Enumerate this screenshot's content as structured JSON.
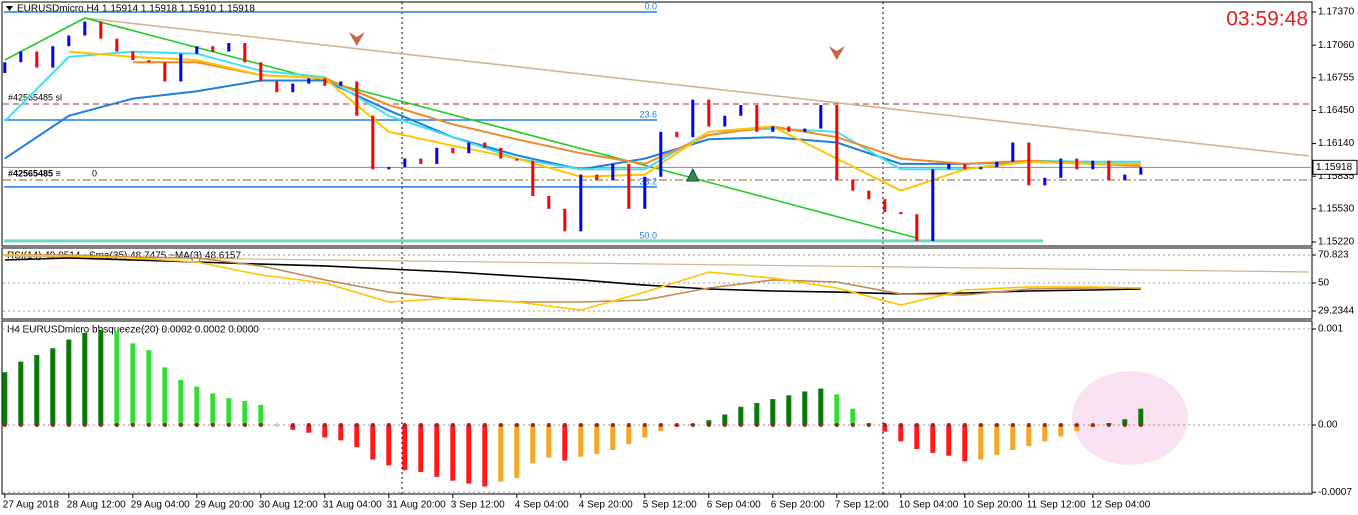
{
  "chart_data": [
    {
      "type": "ohlc",
      "title": "EURUSDmicro,H4  1.15914 1.15918 1.15910 1.15918",
      "clock": "03:59:48",
      "x": [
        0,
        1,
        2,
        3,
        4,
        5,
        6,
        7,
        8,
        9,
        10,
        11,
        12,
        13,
        14,
        15,
        16,
        17,
        18,
        19,
        20,
        21,
        22,
        23,
        24,
        25,
        26,
        27,
        28,
        29,
        30,
        31,
        32,
        33,
        34,
        35,
        36,
        37,
        38,
        39,
        40,
        41,
        42,
        43,
        44,
        45,
        46,
        47,
        48,
        49,
        50,
        51,
        52,
        53,
        54,
        55,
        56,
        57,
        58,
        59,
        60,
        61,
        62,
        63,
        64,
        65,
        66,
        67,
        68,
        69,
        70,
        71
      ],
      "open": [
        1.168,
        1.169,
        1.17,
        1.1685,
        1.1705,
        1.1715,
        1.1728,
        1.1712,
        1.17,
        1.1692,
        1.169,
        1.1672,
        1.1698,
        1.1705,
        1.17,
        1.1708,
        1.169,
        1.1672,
        1.1662,
        1.167,
        1.1675,
        1.1668,
        1.1672,
        1.164,
        1.159,
        1.1592,
        1.16,
        1.1595,
        1.161,
        1.1605,
        1.1615,
        1.161,
        1.16,
        1.1598,
        1.1565,
        1.1553,
        1.1532,
        1.1585,
        1.158,
        1.1595,
        1.1553,
        1.1583,
        1.1625,
        1.162,
        1.1655,
        1.163,
        1.164,
        1.165,
        1.1625,
        1.163,
        1.1625,
        1.1628,
        1.165,
        1.158,
        1.157,
        1.1562,
        1.155,
        1.1548,
        1.1523,
        1.159,
        1.1595,
        1.159,
        1.1592,
        1.1597,
        1.1615,
        1.1575,
        1.1582,
        1.16,
        1.159,
        1.1598,
        1.158,
        1.1585
      ],
      "close": [
        1.169,
        1.17,
        1.1685,
        1.1705,
        1.1715,
        1.1728,
        1.1712,
        1.17,
        1.1692,
        1.169,
        1.1672,
        1.1698,
        1.1705,
        1.17,
        1.1708,
        1.169,
        1.1672,
        1.1662,
        1.167,
        1.1675,
        1.1668,
        1.1672,
        1.164,
        1.159,
        1.1592,
        1.16,
        1.1595,
        1.161,
        1.1605,
        1.1615,
        1.161,
        1.16,
        1.1598,
        1.1565,
        1.1553,
        1.1532,
        1.1585,
        1.158,
        1.1595,
        1.1553,
        1.1583,
        1.1625,
        1.162,
        1.1655,
        1.163,
        1.164,
        1.165,
        1.1625,
        1.163,
        1.1625,
        1.1628,
        1.165,
        1.158,
        1.157,
        1.1562,
        1.155,
        1.1548,
        1.1523,
        1.159,
        1.1595,
        1.159,
        1.1592,
        1.1597,
        1.1615,
        1.1575,
        1.1582,
        1.16,
        1.159,
        1.1598,
        1.158,
        1.1585,
        1.15918
      ],
      "up_color": "#0000ff",
      "down_color": "#ff0000",
      "series": [
        {
          "color": "#1e7fe0",
          "x": [
            0,
            4,
            8,
            12,
            16,
            20,
            24,
            28,
            32,
            36,
            40,
            44,
            48,
            52,
            56,
            60,
            64,
            68,
            71
          ],
          "values": [
            1.16,
            1.164,
            1.1656,
            1.1663,
            1.1673,
            1.1673,
            1.1645,
            1.162,
            1.1603,
            1.159,
            1.16,
            1.1618,
            1.162,
            1.1615,
            1.1595,
            1.1595,
            1.1597,
            1.1595,
            1.1595
          ]
        },
        {
          "color": "#40e0f0",
          "x": [
            0,
            4,
            8,
            12,
            16,
            20,
            24,
            28,
            32,
            36,
            40,
            44,
            48,
            52,
            56,
            60,
            64,
            68,
            71
          ],
          "values": [
            1.1635,
            1.1695,
            1.17,
            1.1698,
            1.1682,
            1.1676,
            1.164,
            1.162,
            1.16,
            1.159,
            1.159,
            1.1625,
            1.1628,
            1.1625,
            1.159,
            1.159,
            1.1598,
            1.1597,
            1.1597
          ]
        },
        {
          "color": "#f08a24",
          "x": [
            0,
            4,
            8,
            12,
            16,
            20,
            24,
            28,
            32,
            36,
            40,
            44,
            48,
            52,
            56,
            60,
            64,
            68,
            71
          ],
          "values": [
            null,
            null,
            1.169,
            1.169,
            1.1678,
            1.1675,
            1.165,
            1.1632,
            1.1618,
            1.1605,
            1.1595,
            1.1622,
            1.163,
            1.162,
            1.16,
            1.1595,
            1.1598,
            1.1595,
            1.1593
          ]
        },
        {
          "color": "#ffc400",
          "x": [
            0,
            4,
            8,
            12,
            16,
            20,
            24,
            28,
            32,
            36,
            40,
            44,
            48,
            52,
            56,
            60,
            64,
            68,
            71
          ],
          "values": [
            null,
            1.17,
            1.1695,
            1.1692,
            1.1678,
            1.1675,
            1.1625,
            1.1612,
            1.16,
            1.1583,
            1.1585,
            1.1625,
            1.163,
            1.16,
            1.157,
            1.159,
            1.1597,
            1.1595,
            1.1595
          ]
        }
      ],
      "trendlines": [
        {
          "color": "#d2b48c",
          "x": [
            5,
            81.5
          ],
          "values": [
            1.17314,
            1.16024
          ]
        },
        {
          "color": "#22cc22",
          "x": [
            0,
            5,
            43,
            57
          ],
          "values": [
            1.16921,
            1.17314,
            1.15818,
            1.15257
          ]
        }
      ],
      "fib_levels": [
        {
          "label": "0.0",
          "value": 1.1737
        },
        {
          "label": "23.6",
          "value": 1.1636
        },
        {
          "label": "38.2",
          "value": 1.15735
        },
        {
          "label": "50.0",
          "value": 1.1523
        }
      ],
      "fib_color": "#1e7fe0",
      "fib_last_color": "#70d8c0",
      "order_lines": [
        {
          "label": "#42565485 sl",
          "value": 1.1651,
          "color": "#b03030"
        },
        {
          "label": "#42565485 ≡",
          "value": 1.158,
          "tag": "0",
          "color": "#8b5a2b"
        }
      ],
      "arrows_down": [
        {
          "x": 22,
          "value": 1.17127
        },
        {
          "x": 52,
          "value": 1.16996
        }
      ],
      "arrows_up": [
        {
          "x": 43,
          "value": 1.15837
        }
      ],
      "last_price": 1.15918,
      "xlim": [
        -0.3,
        81.7
      ],
      "ylim": [
        1.15192,
        1.17454
      ],
      "yticks": [
        {
          "value": 1.1737,
          "label": "1.17370"
        },
        {
          "value": 1.1706,
          "label": "1.17060"
        },
        1.16755,
        {
          "value": 1.1645,
          "label": "1.16450"
        },
        {
          "value": 1.1614,
          "label": "1.16140"
        },
        1.15835,
        {
          "value": 1.1553,
          "label": "1.15530"
        },
        {
          "value": 1.1522,
          "label": "1.15220"
        }
      ]
    },
    {
      "type": "line",
      "title": "RSI(14) 49.0514  ~Sma(35) 48.7475  ~MA(3) 48.6157",
      "series": [
        {
          "color": "#d2b48c",
          "x": [
            0,
            81.5
          ],
          "values": [
            70.1,
            58.2
          ]
        },
        {
          "color": "#000000",
          "x": [
            0,
            4,
            8,
            12,
            16,
            20,
            24,
            28,
            32,
            36,
            40,
            44,
            48,
            52,
            56,
            60,
            64,
            68,
            71
          ],
          "values": [
            67.1,
            68.6,
            67.1,
            65.6,
            64.1,
            62.7,
            60.4,
            58.2,
            55.2,
            52.3,
            48.5,
            45.6,
            44.1,
            43.3,
            41.9,
            42.6,
            44.1,
            44.8,
            45.6
          ]
        },
        {
          "color": "#c08a50",
          "x": [
            0,
            4,
            8,
            12,
            16,
            20,
            24,
            28,
            32,
            36,
            40,
            44,
            48,
            52,
            56,
            60,
            64,
            68,
            71
          ],
          "values": [
            70.8,
            70.8,
            69.3,
            68.6,
            62.7,
            52.3,
            43.3,
            38.2,
            35.9,
            35.9,
            37.4,
            46.3,
            52.3,
            50.8,
            41.9,
            41.1,
            45.6,
            46.3,
            46.3
          ]
        },
        {
          "color": "#ffc400",
          "x": [
            0,
            4,
            8,
            12,
            16,
            20,
            24,
            28,
            32,
            36,
            40,
            44,
            48,
            52,
            56,
            60,
            64,
            68,
            71
          ],
          "values": [
            70.8,
            70.1,
            68.6,
            65.6,
            56.0,
            50.0,
            35.9,
            38.9,
            35.9,
            30.0,
            43.3,
            58.2,
            53.7,
            46.3,
            33.7,
            44.8,
            47.1,
            47.1,
            46.3
          ]
        }
      ],
      "xlim": [
        -0.3,
        81.7
      ],
      "ylim": [
        24.03,
        75.28
      ],
      "yticks": [
        70.823,
        50,
        29.2344
      ],
      "grid": true
    },
    {
      "type": "bar",
      "title": "H4 EURUSDmicro bbsqueeze(20) 0.0002 0.0002 0.0000",
      "values": [
        0.00055,
        0.00066,
        0.00073,
        0.0008,
        0.00089,
        0.00096,
        0.00099,
        0.00097,
        0.00085,
        0.00078,
        0.0006,
        0.00047,
        0.0004,
        0.00033,
        0.00028,
        0.00025,
        0.00021,
        0,
        -5e-05,
        -8e-05,
        -0.00013,
        -0.00016,
        -0.00023,
        -0.00036,
        -0.00042,
        -0.00047,
        -0.00049,
        -0.00054,
        -0.00058,
        -0.00061,
        -0.00064,
        -0.00059,
        -0.00055,
        -0.0004,
        -0.00034,
        -0.00037,
        -0.00033,
        -0.0003,
        -0.00026,
        -0.0002,
        -0.00013,
        -6e-05,
        -2e-05,
        1e-05,
        5e-05,
        0.00011,
        0.00019,
        0.00023,
        0.00027,
        0.00031,
        0.00035,
        0.00038,
        0.00032,
        0.00017,
        2e-05,
        -7e-05,
        -0.00017,
        -0.00025,
        -0.00029,
        -0.00032,
        -0.00038,
        -0.00036,
        -0.00031,
        -0.00026,
        -0.00022,
        -0.00017,
        -0.00012,
        -6e-05,
        -2e-05,
        2e-05,
        6e-05,
        0.00017
      ],
      "colors": [
        "#0b7a0b",
        "#33dd33",
        "#ff1a1a",
        "#f5a623"
      ],
      "xlim": [
        -0.3,
        81.7
      ],
      "ylim": [
        -0.000708,
        0.001073
      ],
      "yticks": [
        0.001,
        {
          "value": 0,
          "label": "0.00"
        },
        -0.0007
      ],
      "grid": true,
      "xticks": [
        {
          "value": 0,
          "label": "27 Aug 2018"
        },
        {
          "value": 4,
          "label": "28 Aug 12:00"
        },
        {
          "value": 8,
          "label": "29 Aug 04:00"
        },
        {
          "value": 12,
          "label": "29 Aug 20:00"
        },
        {
          "value": 16,
          "label": "30 Aug 12:00"
        },
        {
          "value": 20,
          "label": "31 Aug 04:00"
        },
        {
          "value": 24,
          "label": "31 Aug 20:00"
        },
        {
          "value": 28,
          "label": "3 Sep 12:00"
        },
        {
          "value": 32,
          "label": "4 Sep 04:00"
        },
        {
          "value": 36,
          "label": "4 Sep 20:00"
        },
        {
          "value": 40,
          "label": "5 Sep 12:00"
        },
        {
          "value": 44,
          "label": "6 Sep 04:00"
        },
        {
          "value": 48,
          "label": "6 Sep 20:00"
        },
        {
          "value": 52,
          "label": "7 Sep 12:00"
        },
        {
          "value": 56,
          "label": "10 Sep 04:00"
        },
        {
          "value": 60,
          "label": "10 Sep 20:00"
        },
        {
          "value": 64,
          "label": "11 Sep 12:00"
        },
        {
          "value": 68,
          "label": "12 Sep 04:00"
        }
      ]
    }
  ]
}
